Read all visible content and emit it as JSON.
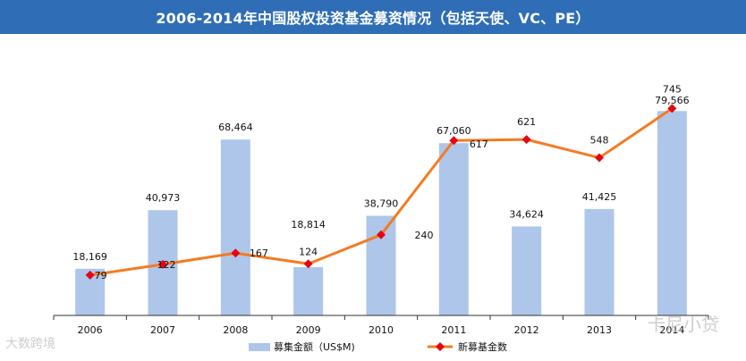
{
  "title": "2006-2014年中国股权投资基金募资情况（包括天使、VC、PE）",
  "watermarks": {
    "left": "大数跨境",
    "right": "卡尼小贷"
  },
  "colors": {
    "title_bg": "#2f6eb6",
    "bar": "#aec6ea",
    "line": "#f47b20",
    "marker": "#e30613",
    "axis": "#333333"
  },
  "chart_data": {
    "type": "bar+line",
    "categories": [
      "2006",
      "2007",
      "2008",
      "2009",
      "2010",
      "2011",
      "2012",
      "2013",
      "2014"
    ],
    "series": [
      {
        "name": "募集金额（US$M)",
        "type": "bar",
        "values": [
          18169,
          40973,
          68464,
          18814,
          38790,
          67060,
          34624,
          41425,
          79566
        ],
        "labels": [
          "18,169",
          "40,973",
          "68,464",
          "18,814",
          "38,790",
          "67,060",
          "34,624",
          "41,425",
          "79,566"
        ]
      },
      {
        "name": "新募基金数",
        "type": "line",
        "values": [
          79,
          122,
          167,
          124,
          240,
          617,
          621,
          548,
          745
        ],
        "labels": [
          "79",
          "122",
          "167",
          "124",
          "240",
          "617",
          "621",
          "548",
          "745"
        ]
      }
    ],
    "legend_position": "bottom",
    "xlabel": "",
    "ylabel": ""
  }
}
